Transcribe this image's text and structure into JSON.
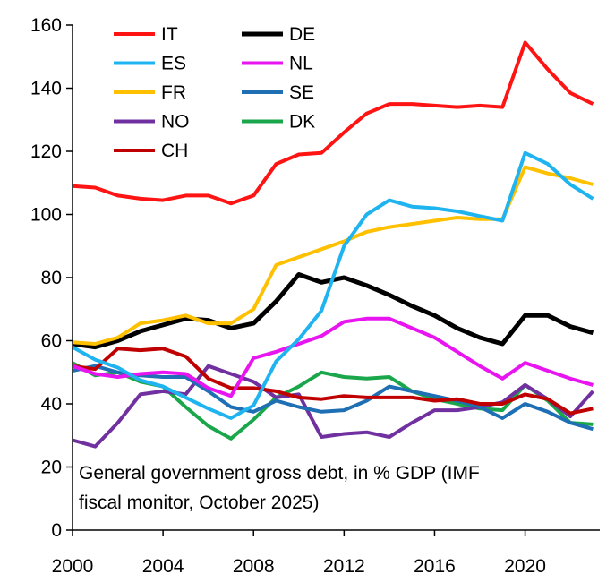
{
  "chart_data": {
    "type": "line",
    "title": "",
    "note_lines": [
      "General government gross debt, in % GDP (IMF",
      "fiscal monitor, October 2025)"
    ],
    "xlabel": "",
    "ylabel": "",
    "x": [
      2000,
      2001,
      2002,
      2003,
      2004,
      2005,
      2006,
      2007,
      2008,
      2009,
      2010,
      2011,
      2012,
      2013,
      2014,
      2015,
      2016,
      2017,
      2018,
      2019,
      2020,
      2021,
      2022,
      2023
    ],
    "xlim": [
      2000,
      2023.3
    ],
    "ylim": [
      0,
      160
    ],
    "x_ticks": [
      2000,
      2004,
      2008,
      2012,
      2016,
      2020
    ],
    "x_tick_labels": [
      "2000",
      "2004",
      "2008",
      "2012",
      "2016",
      "2020"
    ],
    "y_ticks": [
      0,
      20,
      40,
      60,
      80,
      100,
      120,
      140,
      160
    ],
    "y_tick_labels": [
      "0",
      "20",
      "40",
      "60",
      "80",
      "100",
      "120",
      "140",
      "160"
    ],
    "grid": false,
    "legend_position": "top-left",
    "series": [
      {
        "name": "DK",
        "color": "#1aa64a",
        "width": 4,
        "values": [
          53,
          49,
          50,
          47,
          45.5,
          39,
          33,
          29,
          35,
          42,
          45.5,
          50,
          48.5,
          48,
          48.5,
          44,
          41.5,
          40,
          38.5,
          38,
          46,
          41,
          34,
          33.5
        ]
      },
      {
        "name": "NO",
        "color": "#7030a0",
        "width": 4,
        "values": [
          28.5,
          26.5,
          34,
          43,
          44,
          43,
          52,
          49.5,
          47,
          42,
          43,
          29.5,
          30.5,
          31,
          29.5,
          34,
          38,
          38,
          39,
          40.5,
          46,
          41.5,
          36,
          44
        ]
      },
      {
        "name": "SE",
        "color": "#1f6fb4",
        "width": 4,
        "values": [
          50.5,
          52,
          50,
          49,
          48.5,
          48.5,
          44,
          39,
          37.5,
          41,
          39,
          37.5,
          38,
          41,
          45.5,
          44,
          42.5,
          41,
          39,
          35.5,
          40,
          37.5,
          34,
          32
        ]
      },
      {
        "name": "CH",
        "color": "#c00000",
        "width": 4,
        "values": [
          52,
          51,
          57.5,
          57,
          57.5,
          55,
          48,
          45,
          45,
          44,
          42,
          41.5,
          42.5,
          42,
          42,
          42,
          41,
          41.5,
          40,
          40,
          43,
          41.5,
          37,
          38.5
        ]
      },
      {
        "name": "NL",
        "color": "#e815f0",
        "width": 4,
        "values": [
          52,
          49.5,
          48.5,
          49.5,
          50,
          49.5,
          45,
          42.5,
          54.5,
          56.5,
          59,
          61.5,
          66,
          67,
          67,
          64,
          61,
          56.5,
          52,
          48,
          53,
          50.5,
          48,
          46
        ]
      },
      {
        "name": "DE",
        "color": "#000000",
        "width": 5,
        "values": [
          59,
          58,
          60,
          63,
          65,
          67,
          66.5,
          64,
          65.5,
          72.5,
          81,
          78.5,
          80,
          77.5,
          74.5,
          71,
          68,
          64,
          61,
          59,
          68,
          68,
          64.5,
          62.5
        ]
      },
      {
        "name": "FR",
        "color": "#ffc000",
        "width": 4,
        "values": [
          59.5,
          59,
          61,
          65.5,
          66.5,
          68,
          65.5,
          65.5,
          70,
          84,
          86.5,
          89,
          91.5,
          94.5,
          96,
          97,
          98,
          99,
          98.5,
          98.5,
          115,
          113,
          111.5,
          109.5
        ]
      },
      {
        "name": "ES",
        "color": "#1fb4f0",
        "width": 4,
        "values": [
          58,
          54,
          51.5,
          47.5,
          45.5,
          42,
          38.5,
          35.5,
          39.5,
          53.5,
          60.5,
          69.5,
          90,
          100,
          104.5,
          102.5,
          102,
          101,
          99.5,
          98,
          119.5,
          116,
          109.5,
          105
        ]
      },
      {
        "name": "IT",
        "color": "#ff1414",
        "width": 4,
        "values": [
          109,
          108.5,
          106,
          105,
          104.5,
          106,
          106,
          103.5,
          106,
          116,
          119,
          119.5,
          126,
          132,
          135,
          135,
          134.5,
          134,
          134.5,
          134,
          154.5,
          146,
          138.5,
          135
        ]
      }
    ],
    "legend": [
      {
        "name": "IT",
        "color": "#ff1414"
      },
      {
        "name": "DE",
        "color": "#000000"
      },
      {
        "name": "ES",
        "color": "#1fb4f0"
      },
      {
        "name": "NL",
        "color": "#e815f0"
      },
      {
        "name": "FR",
        "color": "#ffc000"
      },
      {
        "name": "SE",
        "color": "#1f6fb4"
      },
      {
        "name": "NO",
        "color": "#7030a0"
      },
      {
        "name": "DK",
        "color": "#1aa64a"
      },
      {
        "name": "CH",
        "color": "#c00000"
      }
    ]
  }
}
